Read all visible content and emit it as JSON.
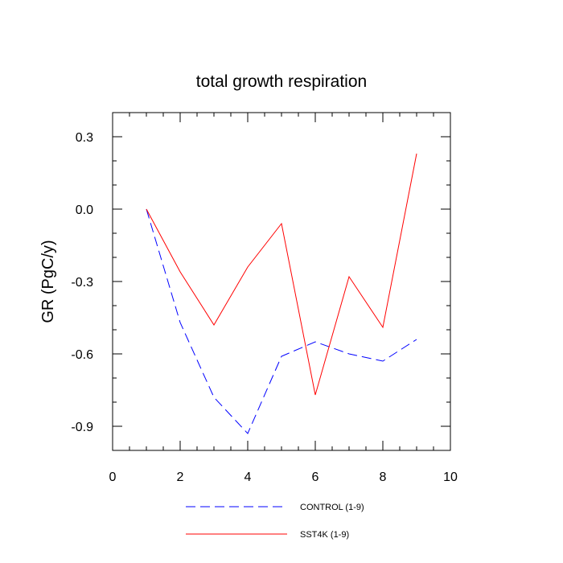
{
  "chart_data": {
    "type": "line",
    "title": "total growth respiration",
    "xlabel": "",
    "ylabel": "GR  (PgC/y)",
    "xlim": [
      0,
      10
    ],
    "ylim": [
      -1.0,
      0.4
    ],
    "x_ticks": [
      0,
      2,
      4,
      6,
      8,
      10
    ],
    "x_tick_labels": [
      "0",
      "2",
      "4",
      "6",
      "8",
      "10"
    ],
    "y_ticks": [
      0.3,
      0.0,
      -0.3,
      -0.6,
      -0.9
    ],
    "y_tick_labels": [
      "0.3",
      "0.0",
      "-0.3",
      "-0.6",
      "-0.9"
    ],
    "grid": false,
    "legend_position": "bottom",
    "series": [
      {
        "name": "CONTROL (1-9)",
        "color": "#0000ff",
        "style": "dashed",
        "x": [
          1,
          2,
          3,
          4,
          5,
          6,
          7,
          8,
          9
        ],
        "values": [
          0.0,
          -0.47,
          -0.78,
          -0.93,
          -0.61,
          -0.55,
          -0.6,
          -0.63,
          -0.54
        ]
      },
      {
        "name": "SST4K (1-9)",
        "color": "#ff0000",
        "style": "solid",
        "x": [
          1,
          2,
          3,
          4,
          5,
          6,
          7,
          8,
          9
        ],
        "values": [
          0.0,
          -0.26,
          -0.48,
          -0.24,
          -0.06,
          -0.77,
          -0.28,
          -0.49,
          0.23
        ]
      }
    ]
  }
}
